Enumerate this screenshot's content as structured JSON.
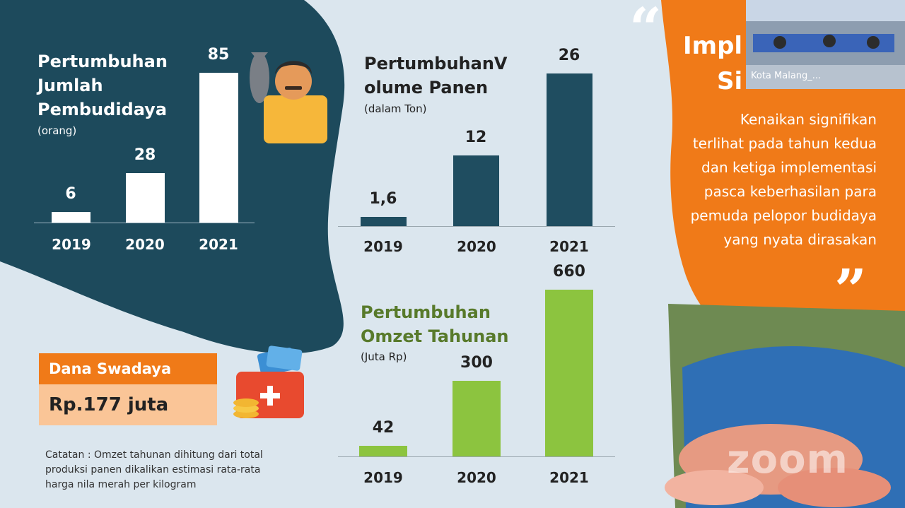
{
  "chart_data": [
    {
      "type": "bar",
      "title": "Pertumbuhan Jumlah Pembudidaya",
      "title_lines": [
        "Pertumbuhan",
        "Jumlah",
        "Pembudidaya"
      ],
      "unit": "(orang)",
      "categories": [
        "2019",
        "2020",
        "2021"
      ],
      "values": [
        6,
        28,
        85
      ],
      "value_labels": [
        "6",
        "28",
        "85"
      ],
      "color": "#ffffff"
    },
    {
      "type": "bar",
      "title": "Pertumbuhan Volume Panen",
      "title_lines": [
        "PertumbuhanV",
        "olume Panen"
      ],
      "unit": "(dalam Ton)",
      "categories": [
        "2019",
        "2020",
        "2021"
      ],
      "values": [
        1.6,
        12,
        26
      ],
      "value_labels": [
        "1,6",
        "12",
        "26"
      ],
      "color": "#1f4d60"
    },
    {
      "type": "bar",
      "title": "Pertumbuhan Omzet Tahunan",
      "title_lines": [
        "Pertumbuhan",
        "Omzet Tahunan"
      ],
      "unit": "(Juta Rp)",
      "categories": [
        "2019",
        "2020",
        "2021"
      ],
      "values": [
        42,
        300,
        660
      ],
      "value_labels": [
        "42",
        "300",
        "660"
      ],
      "color": "#8cc43f"
    }
  ],
  "dana": {
    "label": "Dana Swadaya",
    "value": "Rp.177 juta"
  },
  "note": "Catatan : Omzet tahunan dihitung dari total produksi panen dikalikan estimasi rata-rata harga nila merah per kilogram",
  "panel": {
    "title_partial_1": "Impl",
    "title_partial_2": "Si",
    "body_lines": [
      "Kenaikan signifikan",
      "terlihat pada tahun kedua",
      "dan ketiga implementasi",
      "pasca keberhasilan para",
      "pemuda pelopor budidaya",
      "yang nyata dirasakan"
    ]
  },
  "video": {
    "participant_name": "Kota Malang_..."
  },
  "watermark": "zoom",
  "colors": {
    "teal": "#1d4a5c",
    "orange": "#f07a18",
    "green": "#8cc43f",
    "bg": "#dbe6ee"
  }
}
